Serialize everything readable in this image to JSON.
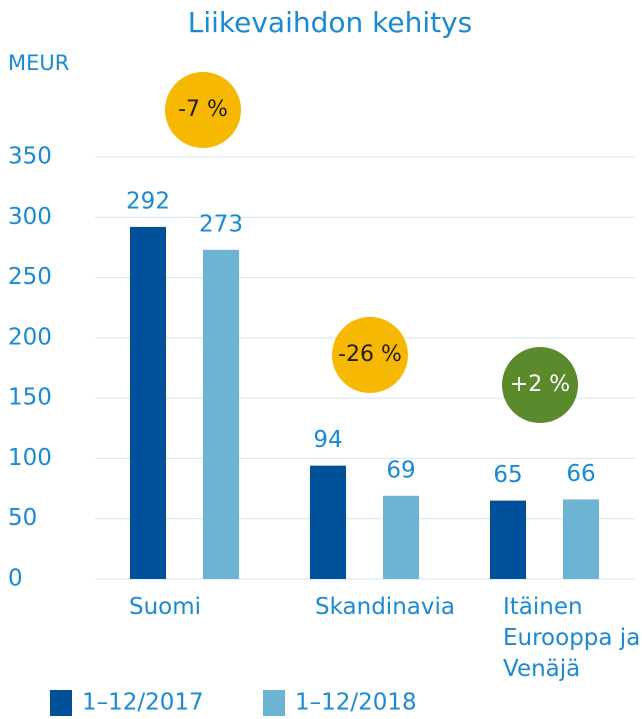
{
  "chart_data": {
    "type": "bar",
    "title": "Liikevaihdon kehitys",
    "y_label": "MEUR",
    "categories": [
      "Suomi",
      "Skandinavia",
      "Itäinen Eurooppa ja Venäjä"
    ],
    "series": [
      {
        "name": "1–12/2017",
        "color": "#00519a",
        "values": [
          292,
          94,
          65
        ]
      },
      {
        "name": "1–12/2018",
        "color": "#6db4d4",
        "values": [
          273,
          69,
          66
        ]
      }
    ],
    "ylim": [
      0,
      350
    ],
    "yticks": [
      0,
      50,
      100,
      150,
      200,
      250,
      300,
      350
    ],
    "grid": true,
    "annotations": [
      {
        "text": "-7 %",
        "color": "#f6b800"
      },
      {
        "text": "-26 %",
        "color": "#f6b800"
      },
      {
        "text": "+2 %",
        "color": "#5b8a2c"
      }
    ],
    "legend": "bottom"
  }
}
